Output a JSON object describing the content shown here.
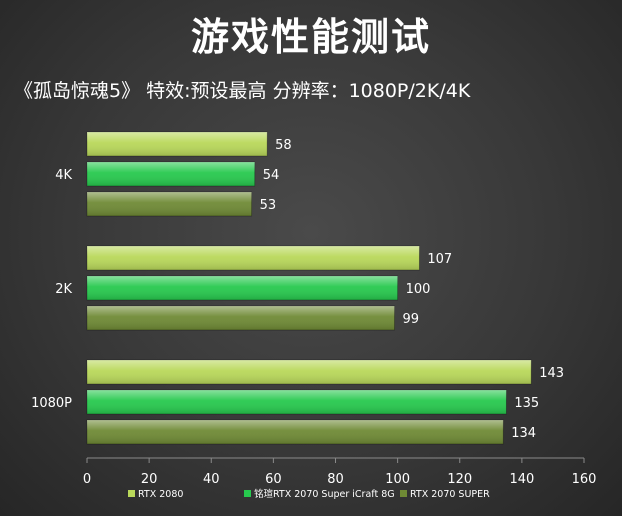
{
  "title": "游戏性能测试",
  "subtitle": "《孤岛惊魂5》 特效:预设最高 分辨率：1080P/2K/4K",
  "chart_data": {
    "type": "bar",
    "orientation": "horizontal",
    "categories": [
      "4K",
      "2K",
      "1080P"
    ],
    "series": [
      {
        "name": "RTX 2080",
        "values": [
          58,
          107,
          143
        ],
        "color": "#b9d85a"
      },
      {
        "name": "铭瑄RTX 2070 Super iCraft 8G",
        "values": [
          54,
          100,
          135
        ],
        "color": "#27c94e"
      },
      {
        "name": "RTX 2070 SUPER",
        "values": [
          53,
          99,
          134
        ],
        "color": "#6f8a35"
      }
    ],
    "xlim": [
      0,
      160
    ],
    "xticks": [
      "0",
      "20",
      "40",
      "60",
      "80",
      "100",
      "120",
      "140",
      "160"
    ],
    "legend_position": "bottom",
    "grid": false
  }
}
